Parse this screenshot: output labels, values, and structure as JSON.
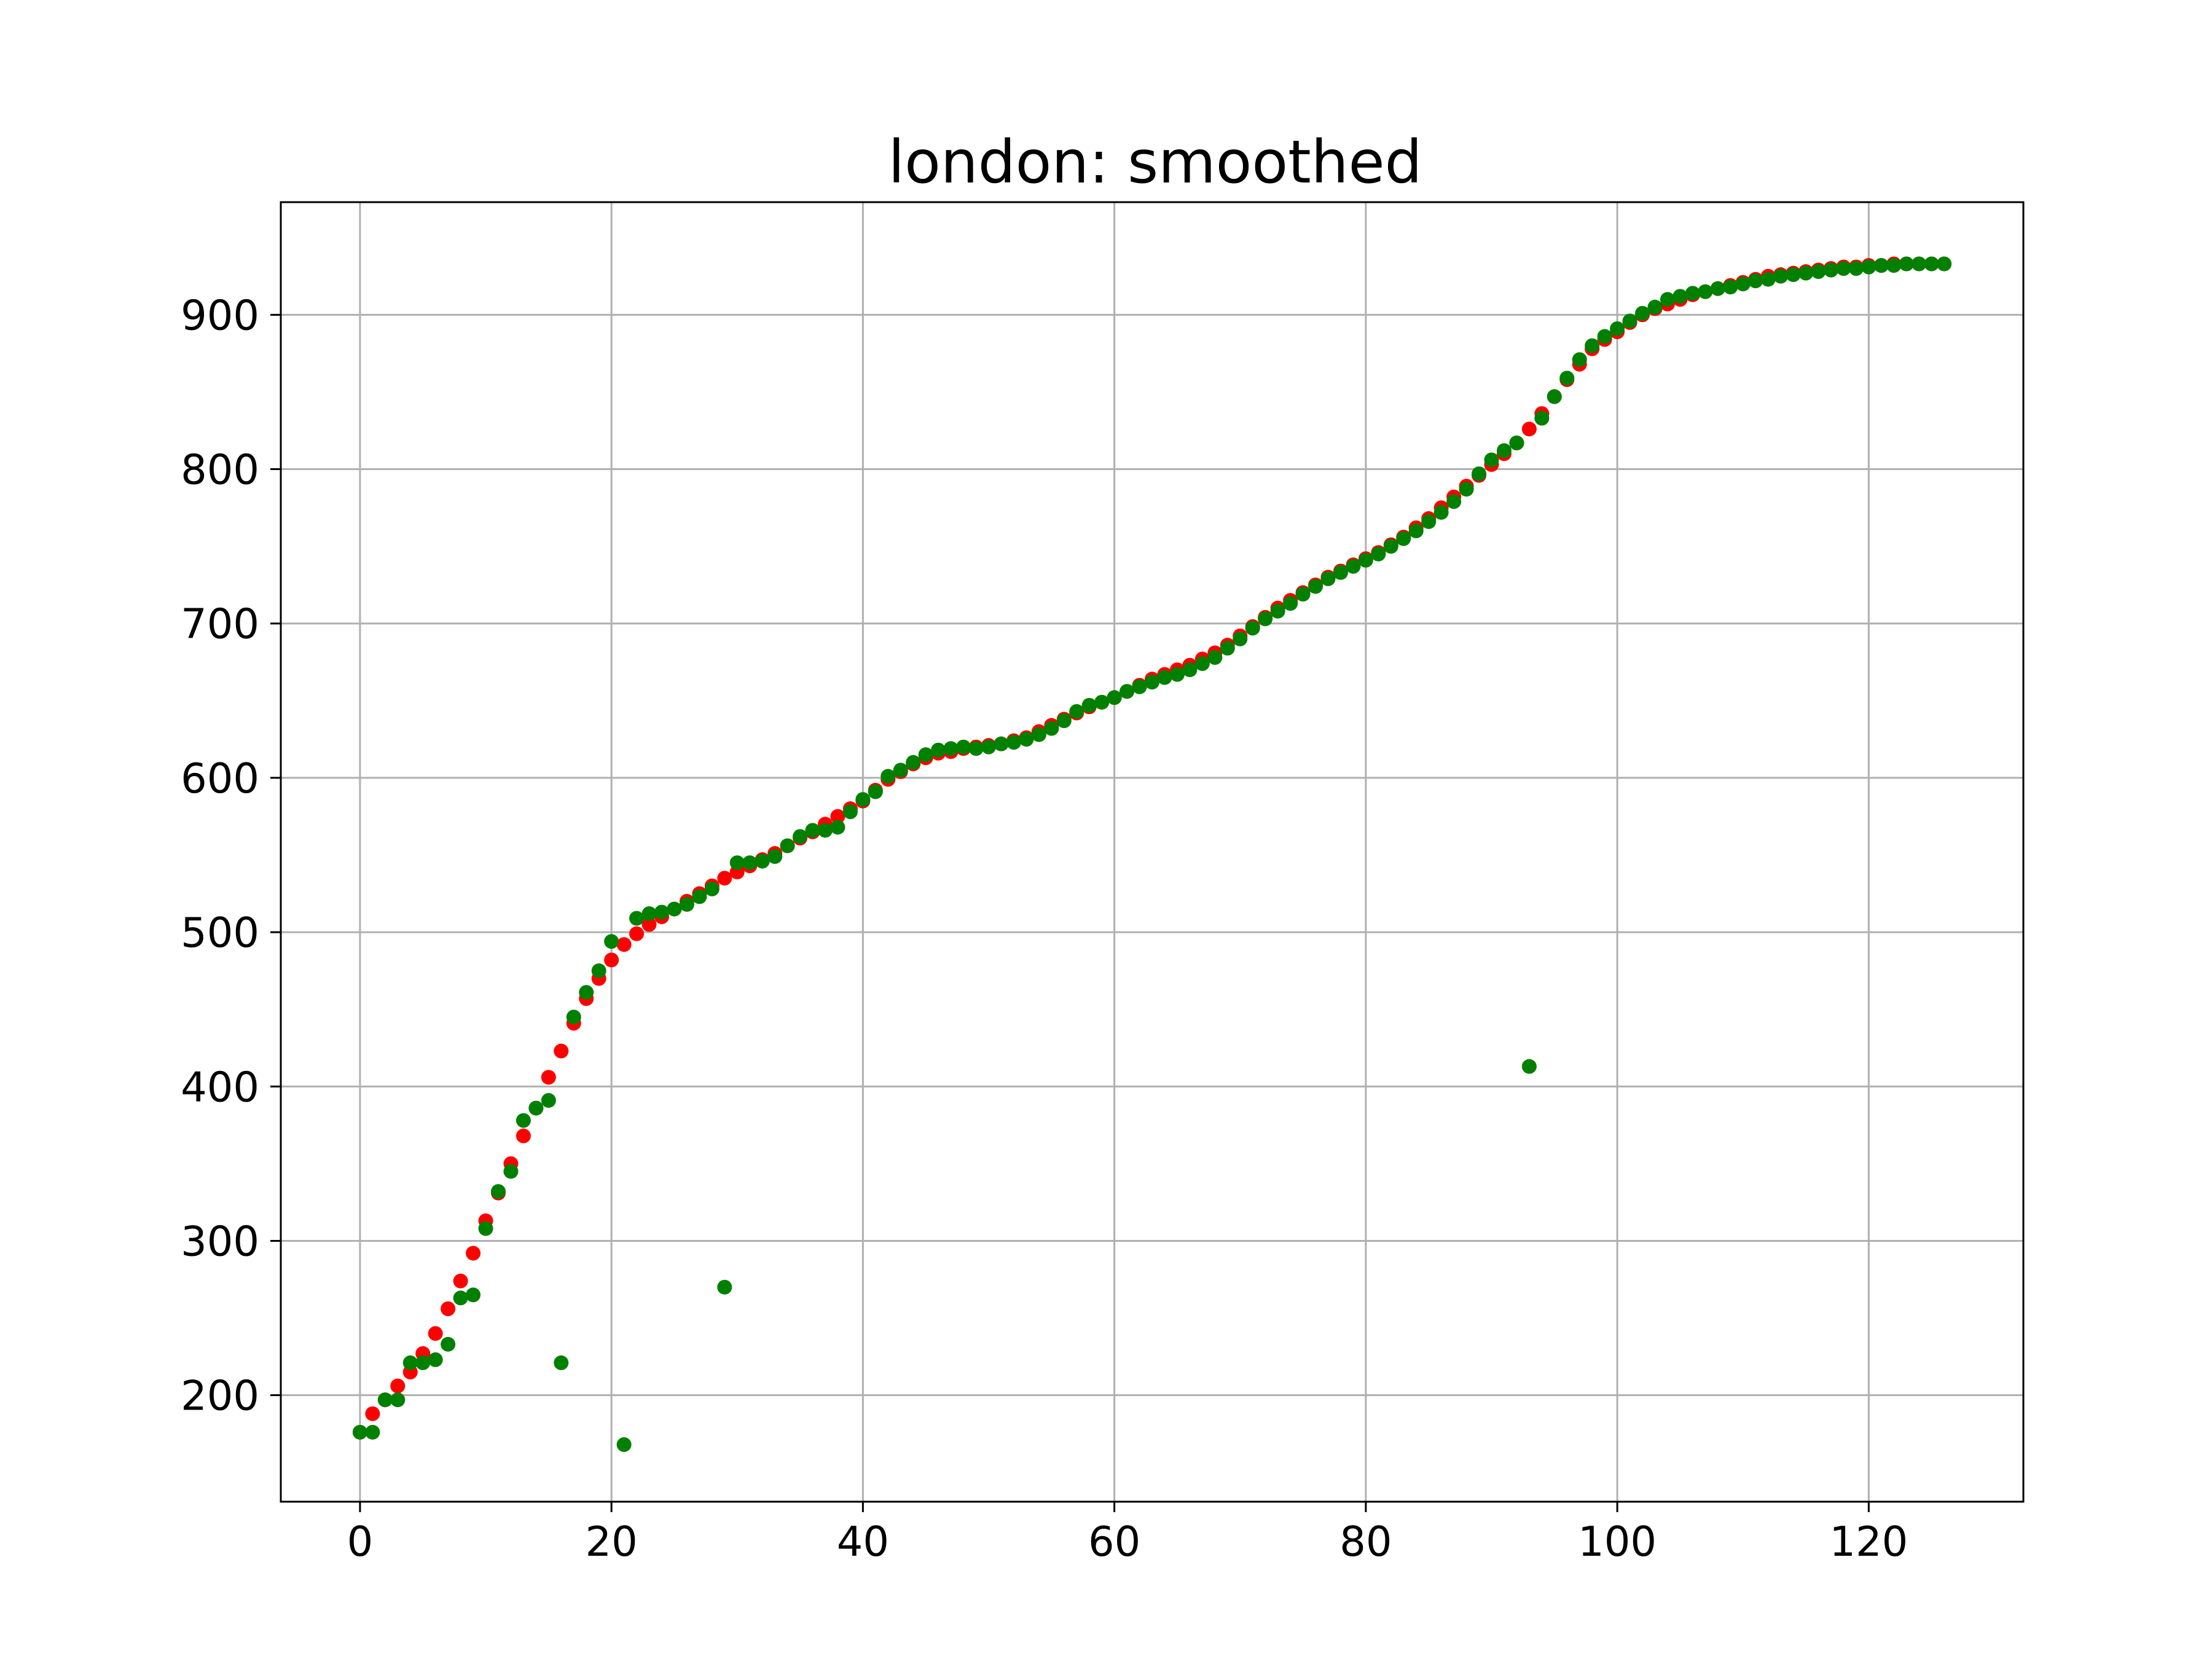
{
  "chart_data": {
    "type": "scatter",
    "title": "london: smoothed",
    "xlabel": "",
    "ylabel": "",
    "xlim": [
      -6.3,
      132.3
    ],
    "ylim": [
      131,
      973
    ],
    "xticks": [
      0,
      20,
      40,
      60,
      80,
      100,
      120
    ],
    "yticks": [
      200,
      300,
      400,
      500,
      600,
      700,
      800,
      900
    ],
    "grid": true,
    "series": [
      {
        "color": "#ff0000",
        "marker_radius": 12,
        "x": [
          0,
          1,
          2,
          3,
          4,
          5,
          6,
          7,
          8,
          9,
          10,
          11,
          12,
          13,
          14,
          15,
          16,
          17,
          18,
          19,
          20,
          21,
          22,
          23,
          24,
          25,
          26,
          27,
          28,
          29,
          30,
          31,
          32,
          33,
          34,
          35,
          36,
          37,
          38,
          39,
          40,
          41,
          42,
          43,
          44,
          45,
          46,
          47,
          48,
          49,
          50,
          51,
          52,
          53,
          54,
          55,
          56,
          57,
          58,
          59,
          60,
          61,
          62,
          63,
          64,
          65,
          66,
          67,
          68,
          69,
          70,
          71,
          72,
          73,
          74,
          75,
          76,
          77,
          78,
          79,
          80,
          81,
          82,
          83,
          84,
          85,
          86,
          87,
          88,
          89,
          90,
          91,
          92,
          93,
          94,
          95,
          96,
          97,
          98,
          99,
          100,
          101,
          102,
          103,
          104,
          105,
          106,
          107,
          108,
          109,
          110,
          111,
          112,
          113,
          114,
          115,
          116,
          117,
          118,
          119,
          120,
          121,
          122,
          123,
          124,
          125,
          126
        ],
        "y": [
          176,
          188,
          197,
          206,
          215,
          227,
          240,
          256,
          274,
          292,
          313,
          331,
          350,
          368,
          386,
          406,
          423,
          441,
          457,
          470,
          482,
          492,
          499,
          505,
          510,
          515,
          520,
          525,
          530,
          535,
          539,
          543,
          547,
          551,
          556,
          561,
          565,
          570,
          575,
          580,
          585,
          592,
          599,
          604,
          609,
          613,
          616,
          617,
          619,
          620,
          621,
          622,
          624,
          626,
          630,
          634,
          638,
          642,
          646,
          649,
          652,
          656,
          660,
          664,
          667,
          670,
          673,
          677,
          681,
          686,
          692,
          698,
          704,
          710,
          715,
          720,
          725,
          730,
          734,
          738,
          742,
          746,
          751,
          756,
          762,
          768,
          775,
          782,
          789,
          796,
          803,
          810,
          817,
          826,
          836,
          847,
          858,
          868,
          878,
          884,
          889,
          895,
          900,
          904,
          907,
          910,
          913,
          915,
          917,
          919,
          921,
          923,
          925,
          926,
          927,
          928,
          929,
          930,
          931,
          931,
          932,
          932,
          933,
          933,
          933,
          933,
          933
        ]
      },
      {
        "color": "#008000",
        "marker_radius": 12,
        "x": [
          0,
          1,
          2,
          3,
          4,
          5,
          6,
          7,
          8,
          9,
          10,
          11,
          12,
          13,
          14,
          15,
          16,
          17,
          18,
          19,
          20,
          21,
          22,
          23,
          24,
          25,
          26,
          27,
          28,
          29,
          30,
          31,
          32,
          33,
          34,
          35,
          36,
          37,
          38,
          39,
          40,
          41,
          42,
          43,
          44,
          45,
          46,
          47,
          48,
          49,
          50,
          51,
          52,
          53,
          54,
          55,
          56,
          57,
          58,
          59,
          60,
          61,
          62,
          63,
          64,
          65,
          66,
          67,
          68,
          69,
          70,
          71,
          72,
          73,
          74,
          75,
          76,
          77,
          78,
          79,
          80,
          81,
          82,
          83,
          84,
          85,
          86,
          87,
          88,
          89,
          90,
          91,
          92,
          93,
          94,
          95,
          96,
          97,
          98,
          99,
          100,
          101,
          102,
          103,
          104,
          105,
          106,
          107,
          108,
          109,
          110,
          111,
          112,
          113,
          114,
          115,
          116,
          117,
          118,
          119,
          120,
          121,
          122,
          123,
          124,
          125,
          126
        ],
        "y": [
          176,
          176,
          197,
          197,
          221,
          221,
          223,
          233,
          263,
          265,
          308,
          332,
          345,
          378,
          386,
          391,
          221,
          445,
          461,
          475,
          494,
          168,
          509,
          512,
          513,
          515,
          518,
          523,
          528,
          270,
          545,
          545,
          546,
          549,
          556,
          562,
          566,
          566,
          568,
          578,
          586,
          591,
          601,
          605,
          610,
          615,
          618,
          619,
          620,
          619,
          620,
          622,
          623,
          625,
          628,
          632,
          637,
          643,
          647,
          649,
          652,
          656,
          659,
          662,
          665,
          667,
          670,
          674,
          678,
          684,
          690,
          697,
          703,
          708,
          713,
          719,
          724,
          729,
          733,
          737,
          741,
          745,
          750,
          755,
          760,
          766,
          772,
          779,
          787,
          797,
          806,
          812,
          817,
          413,
          833,
          847,
          859,
          871,
          880,
          886,
          891,
          896,
          901,
          905,
          910,
          912,
          914,
          915,
          917,
          918,
          920,
          922,
          923,
          925,
          926,
          927,
          928,
          929,
          930,
          930,
          931,
          932,
          932,
          933,
          933,
          933,
          933
        ]
      }
    ]
  }
}
